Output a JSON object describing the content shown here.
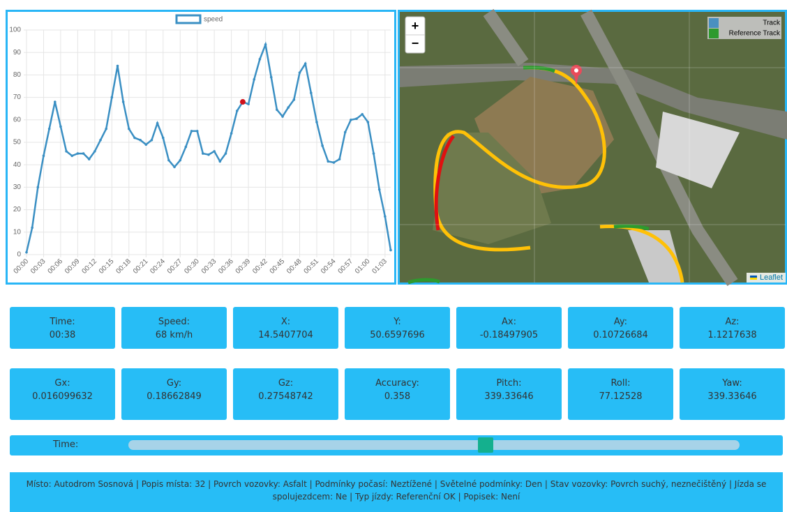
{
  "chart_data": {
    "type": "line",
    "legend": "speed",
    "categories": [
      "00:00",
      null,
      null,
      "00:03",
      null,
      null,
      "00:06",
      null,
      null,
      "00:09",
      null,
      null,
      "00:12",
      null,
      null,
      "00:15",
      null,
      null,
      "00:18",
      null,
      null,
      "00:21",
      null,
      null,
      "00:24",
      null,
      null,
      "00:27",
      null,
      null,
      "00:30",
      null,
      null,
      "00:33",
      null,
      null,
      "00:36",
      null,
      null,
      "00:39",
      null,
      null,
      "00:42",
      null,
      null,
      "00:45",
      null,
      null,
      "00:48",
      null,
      null,
      "00:51",
      null,
      null,
      "00:54",
      null,
      null,
      "00:57",
      null,
      null,
      "01:00",
      null,
      null,
      "01:03",
      null
    ],
    "series": [
      {
        "name": "speed",
        "color": "#3a8fc3",
        "values": [
          1,
          12,
          30,
          44,
          56,
          68,
          57,
          46,
          44,
          45,
          45,
          42.5,
          46,
          51,
          56,
          70,
          84,
          68,
          56,
          52,
          51,
          49,
          51,
          58.5,
          52,
          42,
          39,
          42,
          48,
          55,
          55,
          45,
          44.5,
          46,
          41.5,
          45,
          54,
          64,
          68,
          67,
          78,
          87,
          93.5,
          79,
          64.5,
          61.5,
          65.5,
          69,
          81,
          85,
          72,
          59,
          48.5,
          41.5,
          41,
          42.5,
          54.5,
          60,
          60.5,
          62.5,
          59,
          45,
          29,
          17,
          2
        ]
      }
    ],
    "marker": {
      "index": 38,
      "color": "#d0121b"
    },
    "ylim": [
      0,
      100
    ],
    "yticks": [
      0,
      10,
      20,
      30,
      40,
      50,
      60,
      70,
      80,
      90,
      100
    ],
    "grid": true
  },
  "map": {
    "zoom_in": "+",
    "zoom_out": "−",
    "legend": [
      "Track",
      "Reference Track"
    ],
    "attribution": "Leaflet"
  },
  "info_rows": [
    [
      {
        "label": "Time:",
        "value": "00:38"
      },
      {
        "label": "Speed:",
        "value": "68 km/h"
      },
      {
        "label": "X:",
        "value": "14.5407704"
      },
      {
        "label": "Y:",
        "value": "50.6597696"
      },
      {
        "label": "Ax:",
        "value": "-0.18497905"
      },
      {
        "label": "Ay:",
        "value": "0.10726684"
      },
      {
        "label": "Az:",
        "value": "1.1217638"
      }
    ],
    [
      {
        "label": "Gx:",
        "value": "0.016099632"
      },
      {
        "label": "Gy:",
        "value": "0.18662849"
      },
      {
        "label": "Gz:",
        "value": "0.27548742"
      },
      {
        "label": "Accuracy:",
        "value": "0.358"
      },
      {
        "label": "Pitch:",
        "value": "339.33646"
      },
      {
        "label": "Roll:",
        "value": "77.12528"
      },
      {
        "label": "Yaw:",
        "value": "339.33646"
      }
    ]
  ],
  "slider": {
    "label": "Time:",
    "value": 38,
    "min": 0,
    "max": 65
  },
  "footer": "Místo: Autodrom Sosnová | Popis místa: 32 | Povrch vozovky: Asfalt | Podmínky počasí: Neztížené | Světelné podmínky: Den | Stav vozovky: Povrch suchý, neznečištěný | Jízda se spolujezdcem: Ne | Typ jízdy: Referenční OK | Popisek: Není"
}
